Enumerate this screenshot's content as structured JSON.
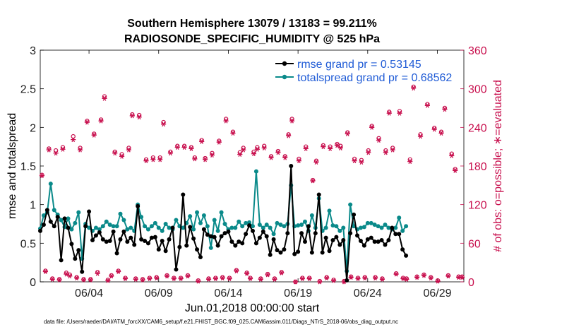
{
  "chart_data": {
    "type": "line",
    "title_line1": "Southern Hemisphere 13079 / 13183 = 99.211%",
    "title_line2": "RADIOSONDE_SPECIFIC_HUMIDITY @ 525 hPa",
    "xlabel": "Jun.01,2018 00:00:00 start",
    "ylabel_left": "rmse and totalspread",
    "ylabel_right": "# of obs: o=possible; ∗=evaluated",
    "footer": "data file: /Users/raeder/DAI/ATM_forcXX/CAM6_setup/f.e21.FHIST_BGC.f09_025.CAM6assim.011/Diags_NTrS_2018-06/obs_diag_output.nc",
    "x_range": [
      0.5,
      30.9
    ],
    "ylim_left": [
      0,
      3
    ],
    "ylim_right": [
      0,
      360
    ],
    "x_ticks": [
      4,
      9,
      14,
      19,
      24,
      29
    ],
    "x_tick_labels": [
      "06/04",
      "06/09",
      "06/14",
      "06/19",
      "06/24",
      "06/29"
    ],
    "y_left_ticks": [
      "0",
      "0.5",
      "1",
      "1.5",
      "2",
      "2.5",
      "3"
    ],
    "y_right_ticks": [
      "0",
      "60",
      "120",
      "180",
      "240",
      "300",
      "360"
    ],
    "x_step_days": 0.25,
    "x_start": 0.5,
    "series": [
      {
        "name": "rmse",
        "legend": "rmse grand pr = 0.53145",
        "color": "#000000",
        "values": [
          0.66,
          0.74,
          0.93,
          0.78,
          0.72,
          0.84,
          0.28,
          0.82,
          0.7,
          0.49,
          0.3,
          0.41,
          0.13,
          0.72,
          0.91,
          0.54,
          0.6,
          0.64,
          0.55,
          0.52,
          0.53,
          0.65,
          0.37,
          0.55,
          0.65,
          0.52,
          0.57,
          0.48,
          0.98,
          0.55,
          0.53,
          0.5,
          0.57,
          0.58,
          0.42,
          0.53,
          0.4,
          0.55,
          0.7,
          0.16,
          0.45,
          1.13,
          0.47,
          0.71,
          0.56,
          0.42,
          0.32,
          0.68,
          0.61,
          0.59,
          0.58,
          0.47,
          0.59,
          0.63,
          0.65,
          0.52,
          0.47,
          0.52,
          0.5,
          0.62,
          0.73,
          0.66,
          0.5,
          0.57,
          0.65,
          0.59,
          0.35,
          0.55,
          0.41,
          0.38,
          0.42,
          0.63,
          1.5,
          0.36,
          0.39,
          0.63,
          0.52,
          0.72,
          0.38,
          0.63,
          1.13,
          0.38,
          0.57,
          0.4,
          0.54,
          0.58,
          0.48,
          0.54,
          0.02,
          0.63,
          0.87,
          0.6,
          0.53,
          0.47,
          0.55,
          0.57,
          0.52,
          0.52,
          0.54,
          0.48,
          0.54,
          0.7,
          0.62,
          0.62,
          0.42,
          0.34
        ]
      },
      {
        "name": "totalspread",
        "legend": "totalspread grand pr = 0.68562",
        "color": "#0a8a8a",
        "values": [
          0.69,
          0.86,
          0.9,
          1.27,
          0.93,
          0.87,
          0.8,
          0.71,
          0.82,
          0.68,
          0.76,
          0.9,
          0.3,
          0.75,
          0.7,
          0.66,
          0.7,
          0.68,
          0.72,
          0.78,
          0.74,
          0.72,
          0.72,
          0.88,
          0.8,
          0.68,
          0.7,
          0.66,
          1.0,
          0.84,
          0.72,
          0.68,
          0.72,
          0.76,
          0.7,
          0.66,
          0.75,
          0.7,
          0.68,
          0.8,
          0.72,
          0.7,
          0.76,
          0.85,
          0.68,
          0.9,
          0.76,
          0.86,
          0.72,
          0.44,
          0.8,
          0.66,
          0.9,
          0.75,
          0.68,
          0.7,
          0.7,
          0.78,
          0.72,
          0.76,
          0.77,
          0.72,
          1.43,
          0.74,
          0.7,
          0.74,
          0.7,
          0.62,
          0.76,
          0.74,
          0.72,
          0.75,
          1.25,
          0.72,
          0.73,
          0.74,
          0.78,
          0.66,
          0.86,
          0.7,
          1.08,
          0.66,
          0.7,
          0.92,
          0.73,
          0.72,
          0.66,
          0.7,
          0.14,
          1.0,
          0.72,
          0.68,
          0.7,
          0.71,
          0.76,
          0.76,
          0.74,
          0.72,
          0.7,
          0.74,
          0.7,
          0.68,
          0.7,
          0.83,
          0.66,
          0.72
        ]
      }
    ],
    "obs_possible": [
      166,
      17,
      207,
      5,
      204,
      4,
      209,
      14,
      11,
      226,
      7,
      208,
      4,
      250,
      4,
      230,
      15,
      252,
      288,
      3,
      10,
      202,
      17,
      198,
      6,
      208,
      260,
      5,
      259,
      4,
      190,
      6,
      193,
      7,
      193,
      248,
      10,
      202,
      6,
      211,
      6,
      211,
      10,
      209,
      193,
      2,
      220,
      192,
      5,
      200,
      6,
      219,
      7,
      253,
      6,
      233,
      18,
      201,
      208,
      14,
      6,
      202,
      209,
      5,
      211,
      12,
      195,
      5,
      203,
      15,
      195,
      229,
      253,
      0,
      191,
      6,
      210,
      6,
      158,
      188,
      1,
      212,
      7,
      210,
      3,
      214,
      211,
      1,
      232,
      8,
      191,
      6,
      189,
      7,
      204,
      242,
      7,
      223,
      5,
      204,
      264,
      208,
      13,
      265,
      6,
      5,
      190,
      303,
      8,
      229,
      11,
      276,
      7,
      239,
      2,
      233,
      270,
      10,
      199,
      175,
      8,
      8
    ],
    "obs_evaluated": [
      165,
      16,
      205,
      4,
      200,
      3,
      206,
      12,
      9,
      221,
      6,
      205,
      3,
      248,
      3,
      228,
      13,
      250,
      285,
      2,
      9,
      200,
      16,
      195,
      5,
      205,
      258,
      4,
      256,
      3,
      188,
      5,
      190,
      6,
      190,
      245,
      9,
      200,
      5,
      209,
      5,
      209,
      9,
      207,
      191,
      1,
      218,
      190,
      4,
      197,
      5,
      217,
      6,
      250,
      5,
      231,
      17,
      198,
      205,
      13,
      5,
      199,
      206,
      4,
      208,
      11,
      193,
      4,
      201,
      14,
      193,
      227,
      250,
      0,
      188,
      5,
      207,
      5,
      157,
      186,
      0,
      210,
      6,
      207,
      2,
      212,
      208,
      0,
      230,
      7,
      188,
      5,
      186,
      6,
      201,
      240,
      6,
      220,
      4,
      201,
      262,
      205,
      12,
      262,
      5,
      4,
      187,
      301,
      7,
      226,
      10,
      274,
      6,
      237,
      1,
      231,
      268,
      9,
      196,
      173,
      7,
      7
    ]
  }
}
